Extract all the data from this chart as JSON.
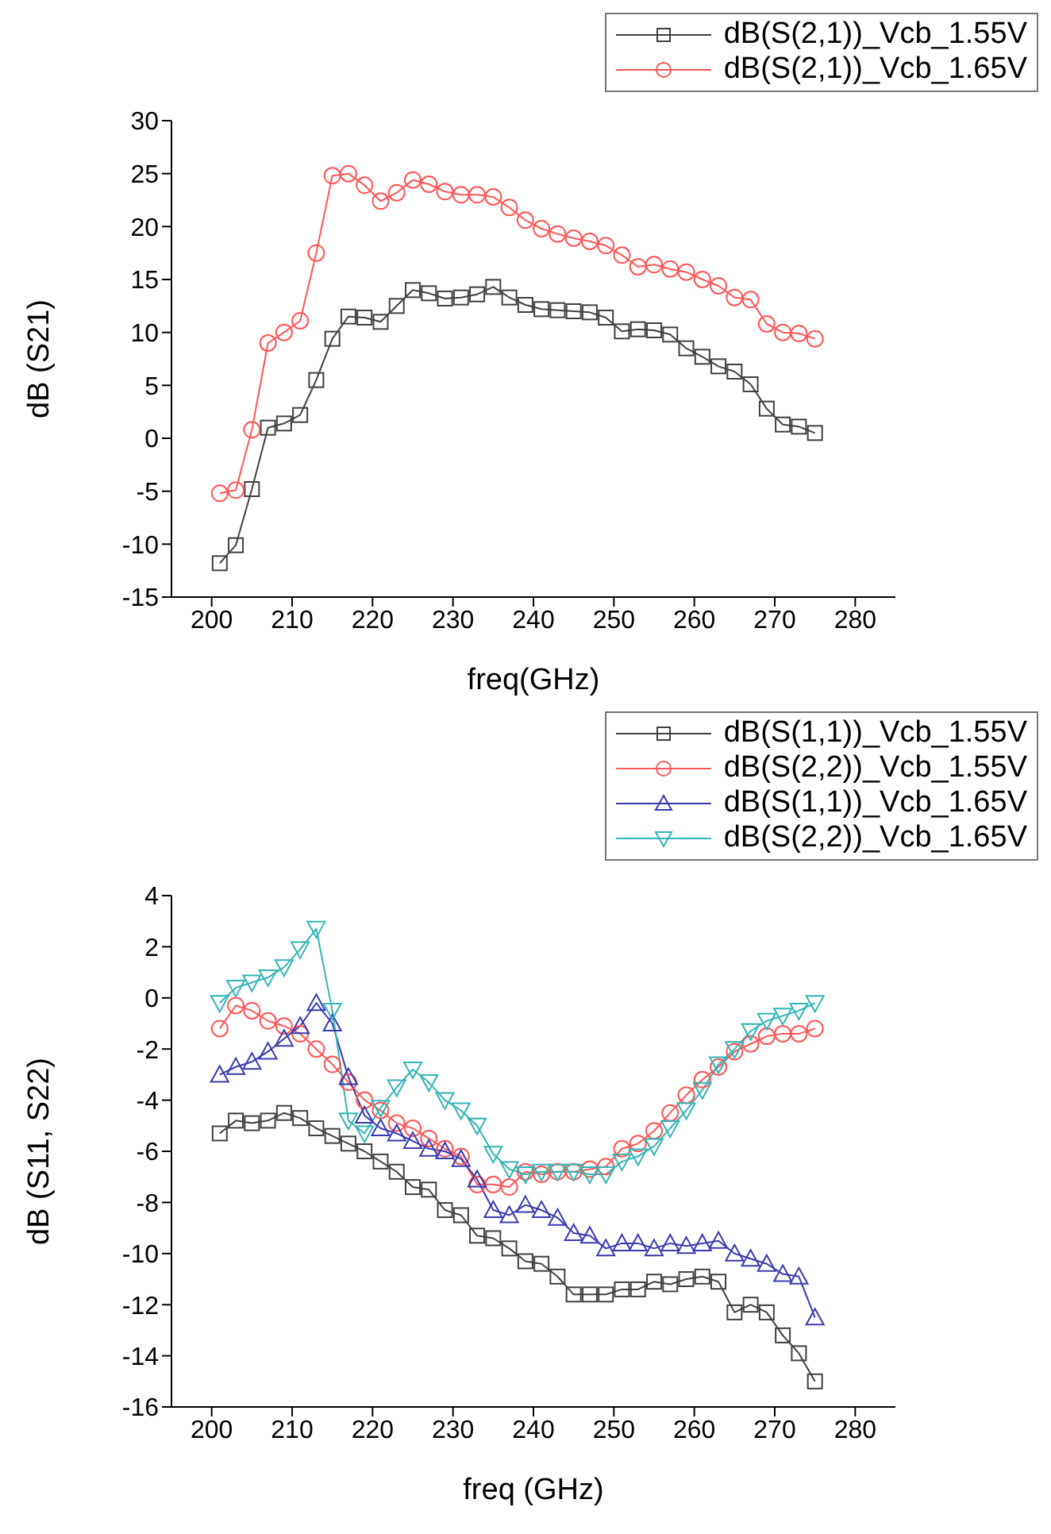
{
  "chart_data": [
    {
      "type": "line",
      "xlabel": "freq(GHz)",
      "ylabel": "dB (S21)",
      "x": [
        201,
        203,
        205,
        207,
        209,
        211,
        213,
        215,
        217,
        219,
        221,
        223,
        225,
        227,
        229,
        231,
        233,
        235,
        237,
        239,
        241,
        243,
        245,
        247,
        249,
        251,
        253,
        255,
        257,
        259,
        261,
        263,
        265,
        267,
        269,
        271,
        273,
        275
      ],
      "series": [
        {
          "name": "dB(S(2,1))_Vcb_1.55V",
          "color": "#404040",
          "marker": "square",
          "values": [
            -11.8,
            -10.1,
            -4.8,
            1.0,
            1.4,
            2.2,
            5.5,
            9.4,
            11.5,
            11.4,
            11.0,
            12.5,
            14.0,
            13.7,
            13.2,
            13.3,
            13.6,
            14.3,
            13.3,
            12.6,
            12.2,
            12.1,
            12.0,
            11.9,
            11.4,
            10.1,
            10.3,
            10.2,
            9.8,
            8.5,
            7.7,
            6.8,
            6.3,
            5.1,
            2.8,
            1.3,
            1.1,
            0.5
          ]
        },
        {
          "name": "dB(S(2,1))_Vcb_1.65V",
          "color": "#ff5555",
          "marker": "circle",
          "values": [
            -5.2,
            -4.9,
            0.8,
            9.0,
            10.0,
            11.1,
            17.5,
            24.8,
            25.0,
            23.9,
            22.4,
            23.2,
            24.4,
            24.0,
            23.3,
            23.0,
            23.0,
            22.8,
            21.8,
            20.6,
            19.8,
            19.3,
            18.9,
            18.6,
            18.2,
            17.3,
            16.2,
            16.4,
            16.0,
            15.7,
            15.0,
            14.4,
            13.3,
            13.1,
            10.8,
            10.0,
            9.9,
            9.4
          ]
        }
      ],
      "xlim": [
        195,
        285
      ],
      "xticks": [
        200,
        210,
        220,
        230,
        240,
        250,
        260,
        270,
        280
      ],
      "ylim": [
        -15,
        30
      ],
      "yticks": [
        -15,
        -10,
        -5,
        0,
        5,
        10,
        15,
        20,
        25,
        30
      ],
      "legend": "top right",
      "grid": false
    },
    {
      "type": "line",
      "xlabel": "freq (GHz)",
      "ylabel": "dB (S11, S22)",
      "x": [
        201,
        203,
        205,
        207,
        209,
        211,
        213,
        215,
        217,
        219,
        221,
        223,
        225,
        227,
        229,
        231,
        233,
        235,
        237,
        239,
        241,
        243,
        245,
        247,
        249,
        251,
        253,
        255,
        257,
        259,
        261,
        263,
        265,
        267,
        269,
        271,
        273,
        275
      ],
      "series": [
        {
          "name": "dB(S(1,1))_Vcb_1.55V",
          "color": "#404040",
          "marker": "square",
          "values": [
            -5.3,
            -4.8,
            -4.9,
            -4.8,
            -4.5,
            -4.7,
            -5.1,
            -5.4,
            -5.7,
            -6.0,
            -6.4,
            -6.8,
            -7.4,
            -7.5,
            -8.3,
            -8.5,
            -9.3,
            -9.4,
            -9.8,
            -10.3,
            -10.4,
            -10.9,
            -11.6,
            -11.6,
            -11.6,
            -11.4,
            -11.4,
            -11.1,
            -11.2,
            -11.0,
            -10.9,
            -11.1,
            -12.3,
            -12.0,
            -12.3,
            -13.2,
            -13.9,
            -15.0
          ]
        },
        {
          "name": "dB(S(2,2))_Vcb_1.55V",
          "color": "#ff5555",
          "marker": "circle",
          "values": [
            -1.2,
            -0.3,
            -0.5,
            -0.9,
            -1.1,
            -1.4,
            -2.0,
            -2.6,
            -3.3,
            -4.0,
            -4.4,
            -4.9,
            -5.1,
            -5.5,
            -5.9,
            -6.2,
            -7.3,
            -7.3,
            -7.4,
            -6.8,
            -6.9,
            -6.8,
            -6.8,
            -6.7,
            -6.6,
            -5.9,
            -5.7,
            -5.2,
            -4.5,
            -3.8,
            -3.2,
            -2.7,
            -2.1,
            -1.8,
            -1.5,
            -1.4,
            -1.4,
            -1.2
          ]
        },
        {
          "name": "dB(S(1,1))_Vcb_1.65V",
          "color": "#3a3ab0",
          "marker": "triangle",
          "values": [
            -3.0,
            -2.7,
            -2.5,
            -2.1,
            -1.6,
            -1.1,
            -0.2,
            -1.0,
            -3.1,
            -4.6,
            -5.1,
            -5.3,
            -5.6,
            -5.9,
            -6.0,
            -6.3,
            -7.1,
            -8.3,
            -8.5,
            -8.1,
            -8.3,
            -8.6,
            -9.2,
            -9.3,
            -9.8,
            -9.6,
            -9.6,
            -9.8,
            -9.6,
            -9.7,
            -9.6,
            -9.5,
            -10.0,
            -10.2,
            -10.4,
            -10.8,
            -10.9,
            -12.5
          ]
        },
        {
          "name": "dB(S(2,2))_Vcb_1.65V",
          "color": "#33b5b5",
          "marker": "triangle-down",
          "values": [
            -0.2,
            0.4,
            0.6,
            0.8,
            1.2,
            1.9,
            2.7,
            -0.5,
            -4.8,
            -5.3,
            -4.3,
            -3.5,
            -2.8,
            -3.3,
            -4.0,
            -4.4,
            -5.0,
            -6.1,
            -6.7,
            -6.9,
            -6.8,
            -6.8,
            -6.8,
            -6.9,
            -6.9,
            -6.4,
            -6.2,
            -5.8,
            -5.1,
            -4.4,
            -3.6,
            -2.6,
            -2.0,
            -1.3,
            -0.9,
            -0.7,
            -0.5,
            -0.2
          ]
        }
      ],
      "xlim": [
        195,
        285
      ],
      "xticks": [
        200,
        210,
        220,
        230,
        240,
        250,
        260,
        270,
        280
      ],
      "ylim": [
        -16,
        4
      ],
      "yticks": [
        -16,
        -14,
        -12,
        -10,
        -8,
        -6,
        -4,
        -2,
        0,
        2,
        4
      ],
      "legend": "top right",
      "grid": false
    }
  ]
}
